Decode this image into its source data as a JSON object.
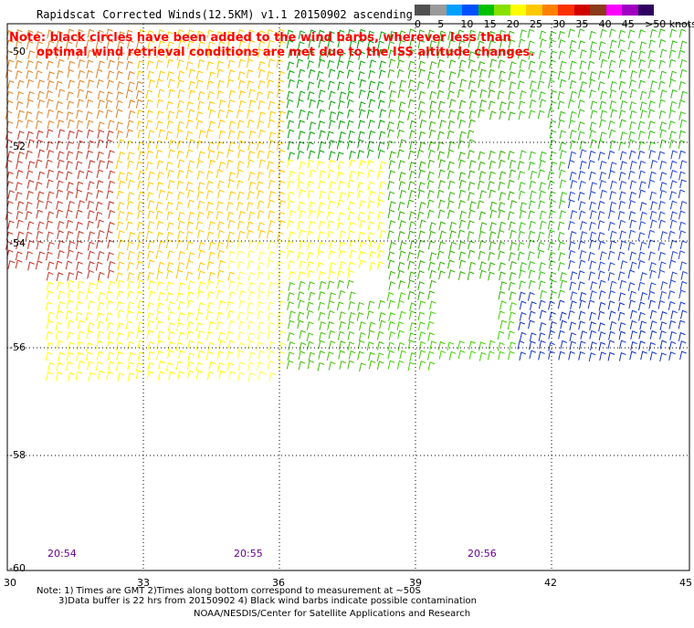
{
  "title": "Rapidscat Corrected Winds(12.5KM) v1.1 20150902 ascending",
  "note_line1": "Note: black circles have been added to the wind barbs, wherever less than",
  "note_line2": "optimal wind retrieval conditions are met due to the ISS altitude changes.",
  "colorbar": {
    "labels": [
      "0",
      "5",
      "10",
      "15",
      "20",
      "25",
      "30",
      "35",
      "40",
      "45",
      ">50 knots"
    ],
    "colors": [
      "#505050",
      "#9a9a9a",
      "#00a0ff",
      "#0050ff",
      "#00c000",
      "#88e000",
      "#ffff00",
      "#ffc800",
      "#ff8000",
      "#ff3000",
      "#d00000",
      "#8b3a1a",
      "#ff00ff",
      "#a000c0",
      "#300060"
    ]
  },
  "map": {
    "lat_labels": [
      "-50",
      "-52",
      "-54",
      "-56",
      "-58",
      "-60"
    ],
    "lon_labels": [
      "30",
      "33",
      "36",
      "39",
      "42",
      "45"
    ],
    "time_labels": [
      "20:54",
      "20:55",
      "20:56"
    ]
  },
  "footer": {
    "line1": "Note: 1) Times are GMT 2)Times along bottom correspond to measurement at ~50S",
    "line2": "3)Data buffer is 22 hrs from 20150902 4) Black wind barbs indicate possible contamination",
    "line3": "NOAA/NESDIS/Center for Satellite Applications and Research"
  }
}
